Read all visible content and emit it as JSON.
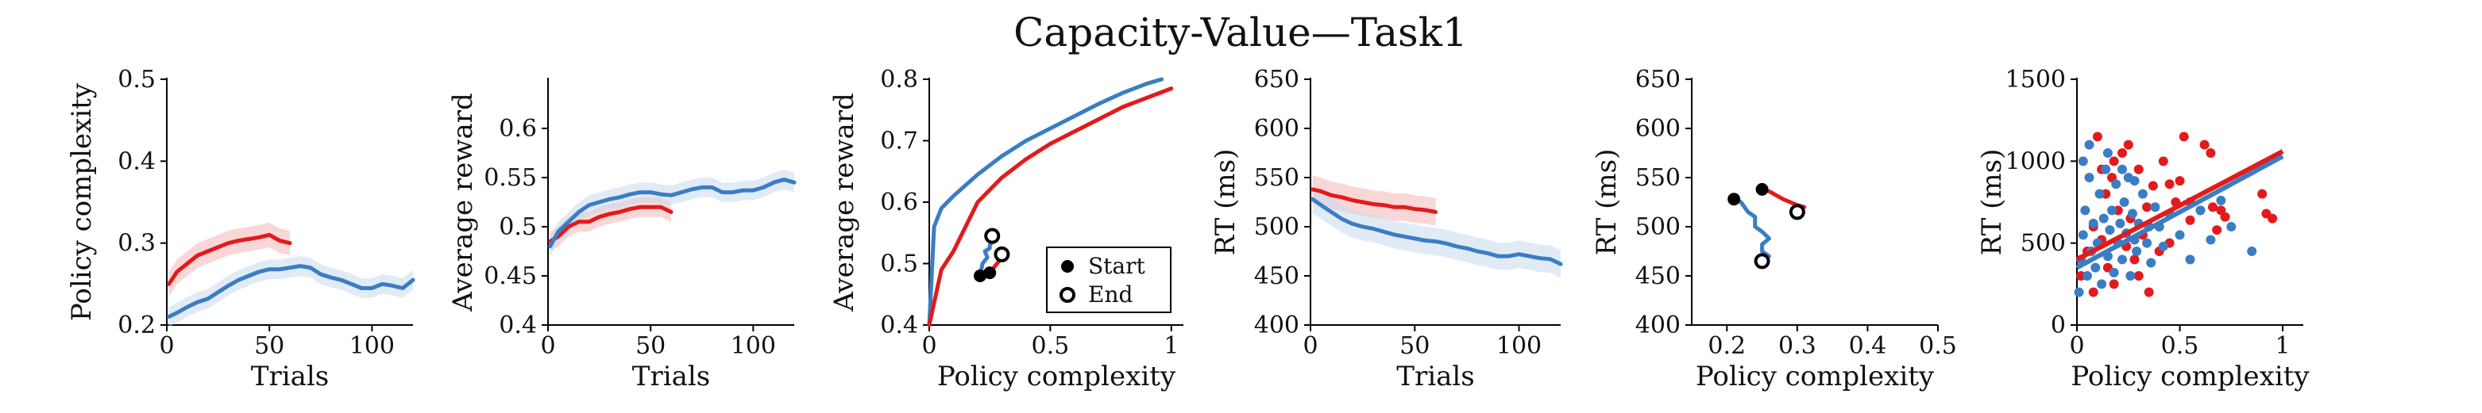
{
  "title": "Capacity-Value—Task1",
  "colors": {
    "red": "#e31a1c",
    "blue": "#3a7dc4",
    "red_band": "#f4b6b6",
    "blue_band": "#c6dbef",
    "black": "#000000"
  },
  "chart_data": [
    {
      "type": "line",
      "xlabel": "Trials",
      "ylabel": "Policy complexity",
      "xlim": [
        0,
        120
      ],
      "ylim": [
        0.2,
        0.5
      ],
      "xticks": [
        0,
        50,
        100
      ],
      "yticks": [
        0.2,
        0.3,
        0.4,
        0.5
      ],
      "xtick_labels": [
        "0",
        "50",
        "100"
      ],
      "ytick_labels": [
        "0.2",
        "0.3",
        "0.4",
        "0.5"
      ],
      "series": [
        {
          "color": "red",
          "band": 0.015,
          "x": [
            1,
            5,
            10,
            15,
            20,
            25,
            30,
            35,
            40,
            45,
            50,
            55,
            60
          ],
          "y": [
            0.25,
            0.265,
            0.275,
            0.285,
            0.29,
            0.295,
            0.3,
            0.303,
            0.305,
            0.307,
            0.31,
            0.303,
            0.3
          ]
        },
        {
          "color": "blue",
          "band": 0.012,
          "x": [
            1,
            5,
            10,
            15,
            20,
            25,
            30,
            35,
            40,
            45,
            50,
            55,
            60,
            65,
            70,
            75,
            80,
            85,
            90,
            95,
            100,
            105,
            110,
            115,
            120
          ],
          "y": [
            0.21,
            0.215,
            0.222,
            0.228,
            0.232,
            0.24,
            0.248,
            0.255,
            0.26,
            0.265,
            0.268,
            0.268,
            0.27,
            0.272,
            0.27,
            0.262,
            0.258,
            0.255,
            0.25,
            0.245,
            0.245,
            0.25,
            0.248,
            0.245,
            0.255
          ]
        }
      ]
    },
    {
      "type": "line",
      "xlabel": "Trials",
      "ylabel": "Average reward",
      "xlim": [
        0,
        120
      ],
      "ylim": [
        0.4,
        0.65
      ],
      "xticks": [
        0,
        50,
        100
      ],
      "yticks": [
        0.4,
        0.45,
        0.5,
        0.55,
        0.6
      ],
      "xtick_labels": [
        "0",
        "50",
        "100"
      ],
      "ytick_labels": [
        "0.4",
        "0.45",
        "0.5",
        "0.55",
        "0.6"
      ],
      "series": [
        {
          "color": "red",
          "band": 0.01,
          "x": [
            1,
            5,
            10,
            15,
            20,
            25,
            30,
            35,
            40,
            45,
            50,
            55,
            60
          ],
          "y": [
            0.485,
            0.49,
            0.5,
            0.505,
            0.505,
            0.51,
            0.513,
            0.515,
            0.518,
            0.52,
            0.52,
            0.52,
            0.515
          ]
        },
        {
          "color": "blue",
          "band": 0.01,
          "x": [
            1,
            5,
            10,
            15,
            20,
            25,
            30,
            35,
            40,
            45,
            50,
            55,
            60,
            65,
            70,
            75,
            80,
            85,
            90,
            95,
            100,
            105,
            110,
            115,
            120
          ],
          "y": [
            0.48,
            0.495,
            0.505,
            0.515,
            0.522,
            0.525,
            0.528,
            0.53,
            0.533,
            0.535,
            0.535,
            0.533,
            0.532,
            0.535,
            0.538,
            0.54,
            0.54,
            0.535,
            0.535,
            0.537,
            0.537,
            0.54,
            0.545,
            0.548,
            0.545
          ]
        }
      ]
    },
    {
      "type": "line",
      "xlabel": "Policy complexity",
      "ylabel": "Average reward",
      "xlim": [
        0,
        1.05
      ],
      "ylim": [
        0.4,
        0.8
      ],
      "xticks": [
        0,
        0.5,
        1
      ],
      "yticks": [
        0.4,
        0.5,
        0.6,
        0.7,
        0.8
      ],
      "xtick_labels": [
        "0",
        "0.5",
        "1"
      ],
      "ytick_labels": [
        "0.4",
        "0.5",
        "0.6",
        "0.7",
        "0.8"
      ],
      "series": [
        {
          "color": "blue",
          "band": 0,
          "x": [
            0,
            0.02,
            0.05,
            0.1,
            0.2,
            0.3,
            0.4,
            0.5,
            0.6,
            0.7,
            0.8,
            0.9,
            0.96
          ],
          "y": [
            0.4,
            0.56,
            0.59,
            0.61,
            0.645,
            0.675,
            0.7,
            0.72,
            0.74,
            0.76,
            0.778,
            0.793,
            0.8
          ]
        },
        {
          "color": "red",
          "band": 0,
          "x": [
            0,
            0.05,
            0.1,
            0.2,
            0.3,
            0.4,
            0.5,
            0.6,
            0.7,
            0.8,
            0.9,
            1.0
          ],
          "y": [
            0.4,
            0.49,
            0.52,
            0.6,
            0.64,
            0.67,
            0.695,
            0.715,
            0.735,
            0.755,
            0.77,
            0.785
          ]
        },
        {
          "color": "blue",
          "band": 0,
          "x": [
            0.21,
            0.22,
            0.24,
            0.23,
            0.25,
            0.25,
            0.26,
            0.26
          ],
          "y": [
            0.48,
            0.5,
            0.51,
            0.52,
            0.525,
            0.53,
            0.535,
            0.545
          ]
        },
        {
          "color": "red",
          "band": 0,
          "x": [
            0.25,
            0.26,
            0.28,
            0.29,
            0.3
          ],
          "y": [
            0.485,
            0.49,
            0.5,
            0.505,
            0.515
          ]
        }
      ],
      "markers": [
        {
          "kind": "start",
          "x": 0.21,
          "y": 0.48
        },
        {
          "kind": "start",
          "x": 0.25,
          "y": 0.485
        },
        {
          "kind": "end",
          "x": 0.26,
          "y": 0.545
        },
        {
          "kind": "end",
          "x": 0.3,
          "y": 0.515
        }
      ],
      "legend": {
        "position": "lower-right",
        "entries": [
          {
            "kind": "start",
            "label": "Start"
          },
          {
            "kind": "end",
            "label": "End"
          }
        ]
      }
    },
    {
      "type": "line",
      "xlabel": "Trials",
      "ylabel": "RT (ms)",
      "xlim": [
        0,
        120
      ],
      "ylim": [
        400,
        650
      ],
      "xticks": [
        0,
        50,
        100
      ],
      "yticks": [
        400,
        450,
        500,
        550,
        600,
        650
      ],
      "xtick_labels": [
        "0",
        "50",
        "100"
      ],
      "ytick_labels": [
        "400",
        "450",
        "500",
        "550",
        "600",
        "650"
      ],
      "series": [
        {
          "color": "red",
          "band": 14,
          "x": [
            1,
            5,
            10,
            15,
            20,
            25,
            30,
            35,
            40,
            45,
            50,
            55,
            60
          ],
          "y": [
            538,
            536,
            532,
            530,
            527,
            525,
            523,
            522,
            520,
            520,
            518,
            517,
            515
          ]
        },
        {
          "color": "blue",
          "band": 14,
          "x": [
            1,
            5,
            10,
            15,
            20,
            25,
            30,
            35,
            40,
            45,
            50,
            55,
            60,
            65,
            70,
            75,
            80,
            85,
            90,
            95,
            100,
            105,
            110,
            115,
            120
          ],
          "y": [
            528,
            522,
            515,
            508,
            503,
            500,
            498,
            495,
            492,
            490,
            488,
            486,
            485,
            483,
            480,
            478,
            475,
            473,
            470,
            470,
            472,
            470,
            468,
            467,
            462
          ]
        }
      ]
    },
    {
      "type": "line",
      "xlabel": "Policy complexity",
      "ylabel": "RT (ms)",
      "xlim": [
        0.15,
        0.5
      ],
      "ylim": [
        400,
        650
      ],
      "xticks": [
        0.2,
        0.3,
        0.4,
        0.5
      ],
      "yticks": [
        400,
        450,
        500,
        550,
        600,
        650
      ],
      "xtick_labels": [
        "0.2",
        "0.3",
        "0.4",
        "0.5"
      ],
      "ytick_labels": [
        "400",
        "450",
        "500",
        "550",
        "600",
        "650"
      ],
      "series": [
        {
          "color": "blue",
          "band": 0,
          "x": [
            0.21,
            0.22,
            0.23,
            0.24,
            0.24,
            0.25,
            0.26,
            0.25,
            0.25,
            0.26,
            0.25
          ],
          "y": [
            528,
            525,
            515,
            510,
            500,
            495,
            488,
            482,
            475,
            470,
            465
          ]
        },
        {
          "color": "red",
          "band": 0,
          "x": [
            0.25,
            0.26,
            0.27,
            0.28,
            0.29,
            0.3,
            0.31,
            0.3
          ],
          "y": [
            538,
            536,
            532,
            528,
            525,
            522,
            520,
            515
          ]
        }
      ],
      "markers": [
        {
          "kind": "start",
          "x": 0.21,
          "y": 528
        },
        {
          "kind": "start",
          "x": 0.25,
          "y": 538
        },
        {
          "kind": "end",
          "x": 0.25,
          "y": 465
        },
        {
          "kind": "end",
          "x": 0.3,
          "y": 515
        }
      ]
    },
    {
      "type": "scatter",
      "xlabel": "Policy complexity",
      "ylabel": "RT (ms)",
      "xlim": [
        0,
        1.1
      ],
      "ylim": [
        0,
        1500
      ],
      "xticks": [
        0,
        0.5,
        1
      ],
      "yticks": [
        0,
        500,
        1000,
        1500
      ],
      "xtick_labels": [
        "0",
        "0.5",
        "1"
      ],
      "ytick_labels": [
        "0",
        "500",
        "1000",
        "1500"
      ],
      "series": [
        {
          "color": "red",
          "points": [
            [
              0.02,
              300
            ],
            [
              0.05,
              450
            ],
            [
              0.08,
              600
            ],
            [
              0.1,
              1150
            ],
            [
              0.12,
              520
            ],
            [
              0.14,
              800
            ],
            [
              0.15,
              350
            ],
            [
              0.17,
              900
            ],
            [
              0.18,
              250
            ],
            [
              0.2,
              700
            ],
            [
              0.22,
              1050
            ],
            [
              0.24,
              480
            ],
            [
              0.25,
              1100
            ],
            [
              0.26,
              650
            ],
            [
              0.28,
              400
            ],
            [
              0.3,
              950
            ],
            [
              0.32,
              550
            ],
            [
              0.34,
              720
            ],
            [
              0.35,
              200
            ],
            [
              0.37,
              850
            ],
            [
              0.4,
              600
            ],
            [
              0.42,
              1000
            ],
            [
              0.45,
              500
            ],
            [
              0.48,
              750
            ],
            [
              0.5,
              880
            ],
            [
              0.52,
              1150
            ],
            [
              0.55,
              640
            ],
            [
              0.6,
              700
            ],
            [
              0.62,
              1100
            ],
            [
              0.65,
              1050
            ],
            [
              0.68,
              580
            ],
            [
              0.7,
              700
            ],
            [
              0.72,
              660
            ],
            [
              0.9,
              800
            ],
            [
              0.92,
              680
            ],
            [
              0.95,
              650
            ],
            [
              0.08,
              200
            ],
            [
              0.12,
              950
            ],
            [
              0.18,
              1000
            ],
            [
              0.3,
              300
            ],
            [
              0.4,
              450
            ],
            [
              0.45,
              860
            ],
            [
              0.55,
              750
            ],
            [
              0.66,
              720
            ]
          ],
          "fit": [
            [
              0,
              400
            ],
            [
              1,
              1060
            ]
          ]
        },
        {
          "color": "blue",
          "points": [
            [
              0.01,
              200
            ],
            [
              0.02,
              400
            ],
            [
              0.03,
              550
            ],
            [
              0.04,
              700
            ],
            [
              0.05,
              300
            ],
            [
              0.06,
              900
            ],
            [
              0.07,
              450
            ],
            [
              0.08,
              620
            ],
            [
              0.09,
              350
            ],
            [
              0.1,
              500
            ],
            [
              0.11,
              800
            ],
            [
              0.12,
              250
            ],
            [
              0.13,
              650
            ],
            [
              0.14,
              950
            ],
            [
              0.15,
              420
            ],
            [
              0.16,
              580
            ],
            [
              0.17,
              700
            ],
            [
              0.18,
              320
            ],
            [
              0.19,
              860
            ],
            [
              0.2,
              500
            ],
            [
              0.21,
              620
            ],
            [
              0.22,
              400
            ],
            [
              0.23,
              750
            ],
            [
              0.24,
              560
            ],
            [
              0.25,
              900
            ],
            [
              0.26,
              300
            ],
            [
              0.27,
              680
            ],
            [
              0.28,
              520
            ],
            [
              0.29,
              450
            ],
            [
              0.3,
              620
            ],
            [
              0.32,
              800
            ],
            [
              0.34,
              500
            ],
            [
              0.36,
              380
            ],
            [
              0.38,
              720
            ],
            [
              0.4,
              600
            ],
            [
              0.42,
              480
            ],
            [
              0.45,
              680
            ],
            [
              0.5,
              550
            ],
            [
              0.55,
              400
            ],
            [
              0.6,
              700
            ],
            [
              0.65,
              520
            ],
            [
              0.7,
              760
            ],
            [
              0.75,
              600
            ],
            [
              0.85,
              450
            ],
            [
              0.03,
              1000
            ],
            [
              0.06,
              1100
            ],
            [
              0.15,
              1050
            ],
            [
              0.22,
              950
            ],
            [
              0.28,
              880
            ],
            [
              0.35,
              600
            ]
          ],
          "fit": [
            [
              0,
              350
            ],
            [
              1,
              1030
            ]
          ]
        }
      ]
    }
  ]
}
